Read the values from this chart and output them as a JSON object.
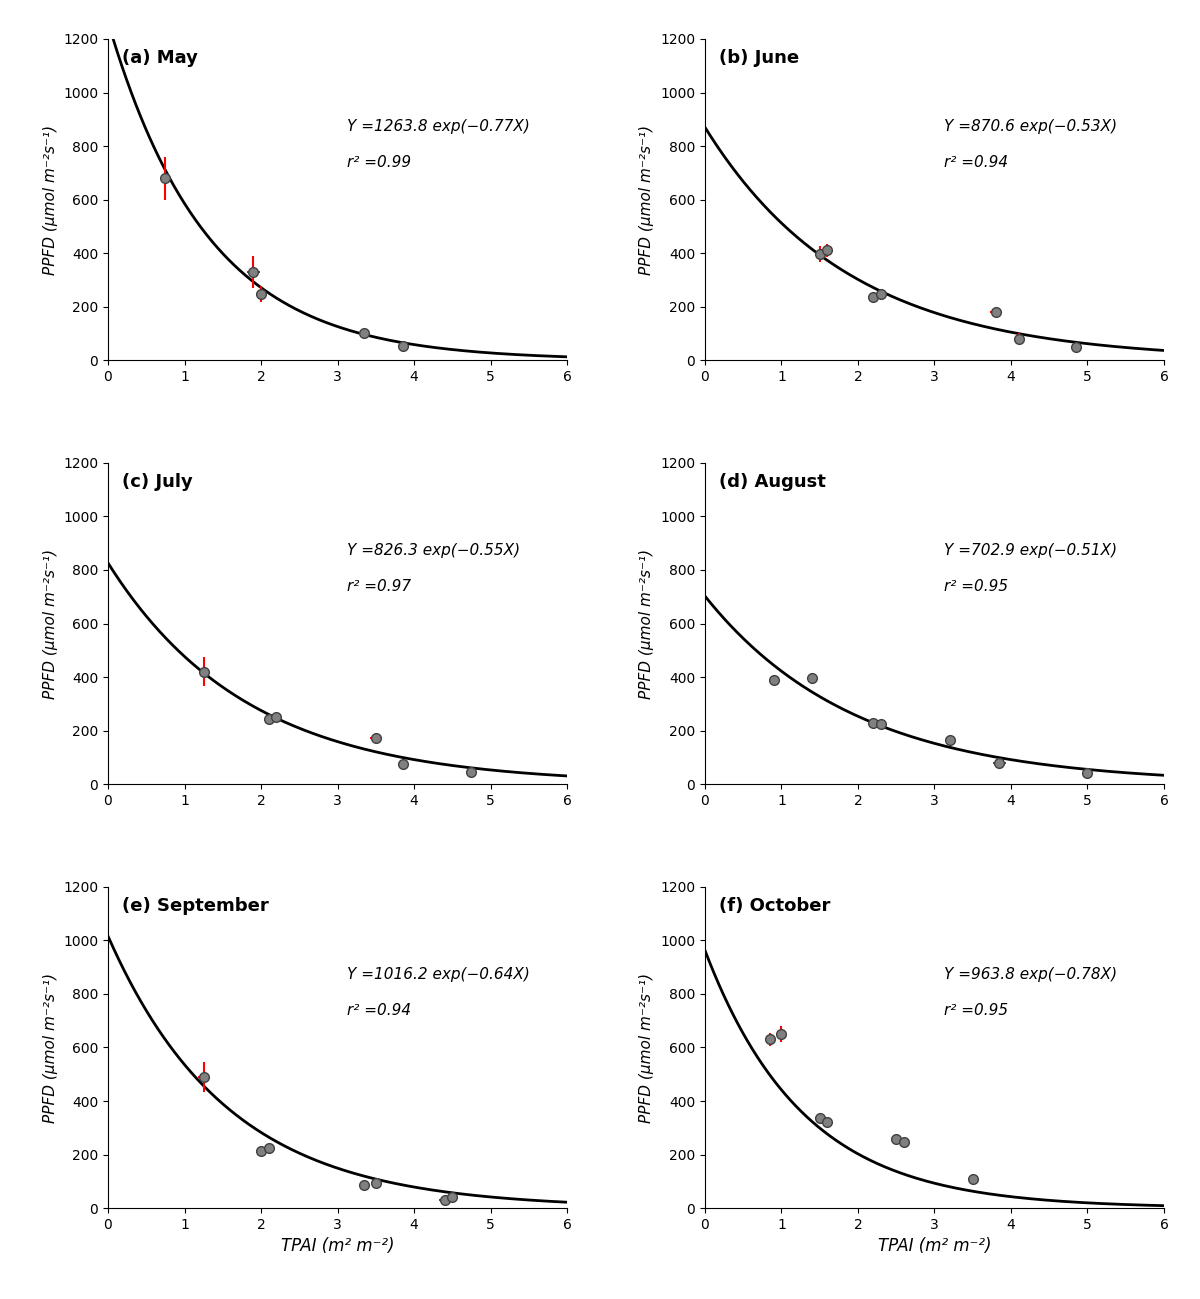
{
  "panels": [
    {
      "label": "(a) May",
      "A": 1263.8,
      "b": 0.77,
      "r2": 0.99,
      "equation": "Y =1263.8 exp(−0.77X)",
      "x": [
        0.75,
        1.9,
        2.0,
        3.35,
        3.85
      ],
      "y": [
        680,
        330,
        248,
        100,
        52
      ],
      "yerr": [
        80,
        60,
        30,
        18,
        10
      ],
      "xerr": [
        0.05,
        0.08,
        0.07,
        0.06,
        0.05
      ]
    },
    {
      "label": "(b) June",
      "A": 870.6,
      "b": 0.53,
      "r2": 0.94,
      "equation": "Y =870.6 exp(−0.53X)",
      "x": [
        1.5,
        1.6,
        2.2,
        2.3,
        3.8,
        4.1,
        4.85
      ],
      "y": [
        395,
        410,
        237,
        248,
        180,
        80,
        50
      ],
      "yerr": [
        30,
        25,
        18,
        15,
        15,
        20,
        8
      ],
      "xerr": [
        0.06,
        0.05,
        0.05,
        0.04,
        0.08,
        0.06,
        0.04
      ]
    },
    {
      "label": "(c) July",
      "A": 826.3,
      "b": 0.55,
      "r2": 0.97,
      "equation": "Y =826.3 exp(−0.55X)",
      "x": [
        1.25,
        2.1,
        2.2,
        3.5,
        3.85,
        4.75
      ],
      "y": [
        420,
        245,
        250,
        172,
        75,
        45
      ],
      "yerr": [
        55,
        15,
        15,
        18,
        8,
        18
      ],
      "xerr": [
        0.06,
        0.05,
        0.05,
        0.08,
        0.05,
        0.06
      ]
    },
    {
      "label": "(d) August",
      "A": 702.9,
      "b": 0.51,
      "r2": 0.95,
      "equation": "Y =702.9 exp(−0.51X)",
      "x": [
        0.9,
        1.4,
        2.2,
        2.3,
        3.2,
        3.85,
        5.0
      ],
      "y": [
        390,
        395,
        230,
        225,
        163,
        80,
        40
      ],
      "yerr": [
        18,
        20,
        12,
        10,
        10,
        15,
        8
      ],
      "xerr": [
        0.05,
        0.06,
        0.05,
        0.04,
        0.06,
        0.08,
        0.05
      ]
    },
    {
      "label": "(e) September",
      "A": 1016.2,
      "b": 0.64,
      "r2": 0.94,
      "equation": "Y =1016.2 exp(−0.64X)",
      "x": [
        1.25,
        2.0,
        2.1,
        3.35,
        3.5,
        4.4,
        4.5
      ],
      "y": [
        490,
        215,
        225,
        88,
        95,
        30,
        40
      ],
      "yerr": [
        55,
        12,
        10,
        12,
        10,
        8,
        8
      ],
      "xerr": [
        0.07,
        0.05,
        0.05,
        0.06,
        0.06,
        0.08,
        0.08
      ]
    },
    {
      "label": "(f) October",
      "A": 963.8,
      "b": 0.78,
      "r2": 0.95,
      "equation": "Y =963.8 exp(−0.78X)",
      "x": [
        0.85,
        1.0,
        1.5,
        1.6,
        2.5,
        2.6,
        3.5
      ],
      "y": [
        630,
        650,
        335,
        320,
        258,
        245,
        110
      ],
      "yerr": [
        25,
        30,
        20,
        18,
        15,
        12,
        18
      ],
      "xerr": [
        0.04,
        0.05,
        0.05,
        0.04,
        0.06,
        0.05,
        0.06
      ]
    }
  ],
  "xlim": [
    0,
    6
  ],
  "ylim": [
    0,
    1200
  ],
  "xlabel": "TPAI (m² m⁻²)",
  "ylabel": "PPFD (μmol m⁻²s⁻¹)",
  "marker_color": "#808080",
  "marker_edge_color": "#404040",
  "error_color": "red",
  "line_color": "black",
  "equation_pos_x": 0.52,
  "equation_pos_y": 0.75
}
